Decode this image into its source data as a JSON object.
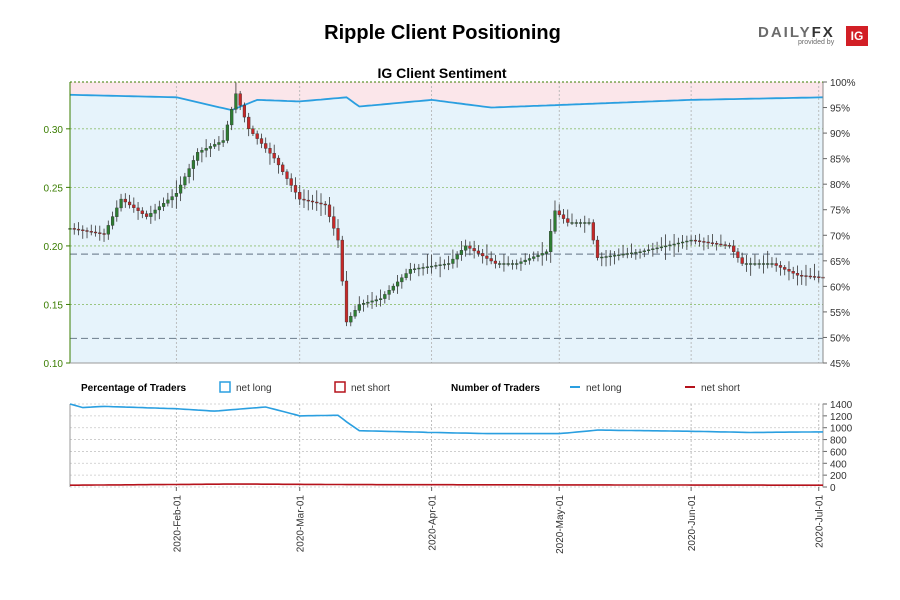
{
  "header": {
    "title": "Ripple Client Positioning",
    "logo_text_a": "DAILY",
    "logo_text_b": "FX",
    "logo_sub": "provided by",
    "logo_ig": "IG"
  },
  "colors": {
    "price_axis": "#3a7d00",
    "long_line": "#2a9fe0",
    "short_line": "#b5121b",
    "long_fill": "#e6f3fb",
    "short_fill": "#fbe6ea",
    "candle_up": "#2e7d32",
    "candle_down": "#c62828"
  },
  "chart_data": [
    {
      "type": "candlestick",
      "title": "IG Client Sentiment",
      "y_left_ticks": [
        "0.10",
        "0.15",
        "0.20",
        "0.25",
        "0.30"
      ],
      "y_left_range": [
        0.1,
        0.34
      ],
      "y_right_ticks": [
        "45%",
        "50%",
        "55%",
        "60%",
        "65%",
        "70%",
        "75%",
        "80%",
        "85%",
        "90%",
        "95%",
        "100%"
      ],
      "y_right_range": [
        45,
        100
      ],
      "x_ticks": [
        "2020-Feb-01",
        "2020-Mar-01",
        "2020-Apr-01",
        "2020-May-01",
        "2020-Jun-01",
        "2020-Jul-01"
      ],
      "x_range": [
        "2020-01-07",
        "2020-07-02"
      ],
      "reference_lines": [
        0.193,
        0.121
      ],
      "price_close_anchors": [
        {
          "date": "2020-01-07",
          "value": 0.215
        },
        {
          "date": "2020-01-15",
          "value": 0.21
        },
        {
          "date": "2020-01-19",
          "value": 0.24
        },
        {
          "date": "2020-01-25",
          "value": 0.225
        },
        {
          "date": "2020-02-01",
          "value": 0.245
        },
        {
          "date": "2020-02-06",
          "value": 0.28
        },
        {
          "date": "2020-02-12",
          "value": 0.29
        },
        {
          "date": "2020-02-15",
          "value": 0.33
        },
        {
          "date": "2020-02-18",
          "value": 0.3
        },
        {
          "date": "2020-02-24",
          "value": 0.275
        },
        {
          "date": "2020-03-01",
          "value": 0.24
        },
        {
          "date": "2020-03-07",
          "value": 0.235
        },
        {
          "date": "2020-03-10",
          "value": 0.205
        },
        {
          "date": "2020-03-12",
          "value": 0.135
        },
        {
          "date": "2020-03-15",
          "value": 0.15
        },
        {
          "date": "2020-03-20",
          "value": 0.155
        },
        {
          "date": "2020-03-27",
          "value": 0.18
        },
        {
          "date": "2020-04-05",
          "value": 0.185
        },
        {
          "date": "2020-04-09",
          "value": 0.2
        },
        {
          "date": "2020-04-16",
          "value": 0.185
        },
        {
          "date": "2020-04-21",
          "value": 0.185
        },
        {
          "date": "2020-04-28",
          "value": 0.195
        },
        {
          "date": "2020-04-30",
          "value": 0.23
        },
        {
          "date": "2020-05-03",
          "value": 0.22
        },
        {
          "date": "2020-05-08",
          "value": 0.22
        },
        {
          "date": "2020-05-10",
          "value": 0.19
        },
        {
          "date": "2020-05-20",
          "value": 0.195
        },
        {
          "date": "2020-06-01",
          "value": 0.205
        },
        {
          "date": "2020-06-10",
          "value": 0.2
        },
        {
          "date": "2020-06-13",
          "value": 0.185
        },
        {
          "date": "2020-06-20",
          "value": 0.185
        },
        {
          "date": "2020-06-26",
          "value": 0.175
        },
        {
          "date": "2020-07-02",
          "value": 0.173
        }
      ],
      "net_long_pct_anchors": [
        {
          "date": "2020-01-07",
          "value": 97.5
        },
        {
          "date": "2020-02-01",
          "value": 97.0
        },
        {
          "date": "2020-02-14",
          "value": 94.5
        },
        {
          "date": "2020-02-20",
          "value": 96.5
        },
        {
          "date": "2020-03-01",
          "value": 96.2
        },
        {
          "date": "2020-03-12",
          "value": 97.0
        },
        {
          "date": "2020-03-15",
          "value": 95.2
        },
        {
          "date": "2020-04-01",
          "value": 96.5
        },
        {
          "date": "2020-04-15",
          "value": 95.0
        },
        {
          "date": "2020-05-01",
          "value": 95.5
        },
        {
          "date": "2020-06-01",
          "value": 96.5
        },
        {
          "date": "2020-07-02",
          "value": 97.0
        }
      ]
    },
    {
      "type": "line",
      "title": "",
      "y_ticks": [
        "0",
        "200",
        "400",
        "600",
        "800",
        "1000",
        "1200",
        "1400"
      ],
      "y_range": [
        0,
        1400
      ],
      "x_range": [
        "2020-01-07",
        "2020-07-02"
      ],
      "series": [
        {
          "name": "net long",
          "anchors": [
            {
              "date": "2020-01-07",
              "value": 1400
            },
            {
              "date": "2020-01-10",
              "value": 1340
            },
            {
              "date": "2020-01-15",
              "value": 1360
            },
            {
              "date": "2020-02-01",
              "value": 1320
            },
            {
              "date": "2020-02-10",
              "value": 1280
            },
            {
              "date": "2020-02-22",
              "value": 1350
            },
            {
              "date": "2020-03-01",
              "value": 1200
            },
            {
              "date": "2020-03-10",
              "value": 1210
            },
            {
              "date": "2020-03-12",
              "value": 1100
            },
            {
              "date": "2020-03-15",
              "value": 950
            },
            {
              "date": "2020-04-01",
              "value": 920
            },
            {
              "date": "2020-04-15",
              "value": 900
            },
            {
              "date": "2020-05-01",
              "value": 900
            },
            {
              "date": "2020-05-10",
              "value": 960
            },
            {
              "date": "2020-06-01",
              "value": 940
            },
            {
              "date": "2020-06-15",
              "value": 920
            },
            {
              "date": "2020-07-02",
              "value": 930
            }
          ]
        },
        {
          "name": "net short",
          "anchors": [
            {
              "date": "2020-01-07",
              "value": 30
            },
            {
              "date": "2020-02-15",
              "value": 50
            },
            {
              "date": "2020-03-15",
              "value": 40
            },
            {
              "date": "2020-07-02",
              "value": 30
            }
          ]
        }
      ]
    }
  ],
  "legend": {
    "pct_title": "Percentage of Traders",
    "pct_long": "net long",
    "pct_short": "net short",
    "num_title": "Number of Traders",
    "num_long": "net long",
    "num_short": "net short"
  }
}
